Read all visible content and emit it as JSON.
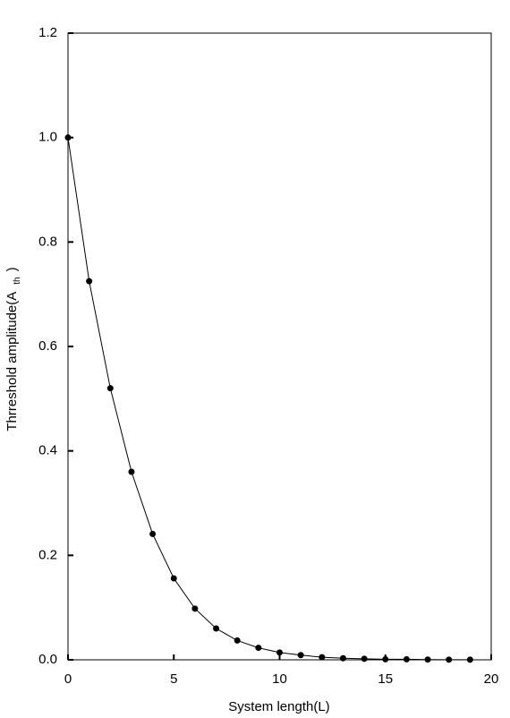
{
  "chart_data": {
    "type": "line",
    "x_label": "System length(L)",
    "y_label": "Thrreshold amplitude(A",
    "y_label_subscript": "th",
    "y_label_end": ")",
    "x": [
      0,
      1,
      2,
      3,
      4,
      5,
      6,
      7,
      8,
      9,
      10,
      11,
      12,
      13,
      14,
      15,
      16,
      17,
      18,
      19
    ],
    "series": [
      {
        "color": "#000000",
        "values": [
          1.0,
          0.725,
          0.52,
          0.36,
          0.241,
          0.156,
          0.098,
          0.06,
          0.037,
          0.023,
          0.014,
          0.009,
          0.005,
          0.003,
          0.002,
          0.001,
          0.001,
          0.0005,
          0.0003,
          0.0002
        ]
      }
    ],
    "xlim": [
      0,
      20
    ],
    "xticks": [
      0,
      5,
      10,
      15,
      20
    ],
    "ylim": [
      0,
      1.2
    ],
    "yticks": [
      {
        "value": 0,
        "label": "0.0"
      },
      0.2,
      0.4,
      0.6,
      0.8,
      {
        "value": 1,
        "label": "1.0"
      },
      1.2
    ],
    "grid": false
  }
}
